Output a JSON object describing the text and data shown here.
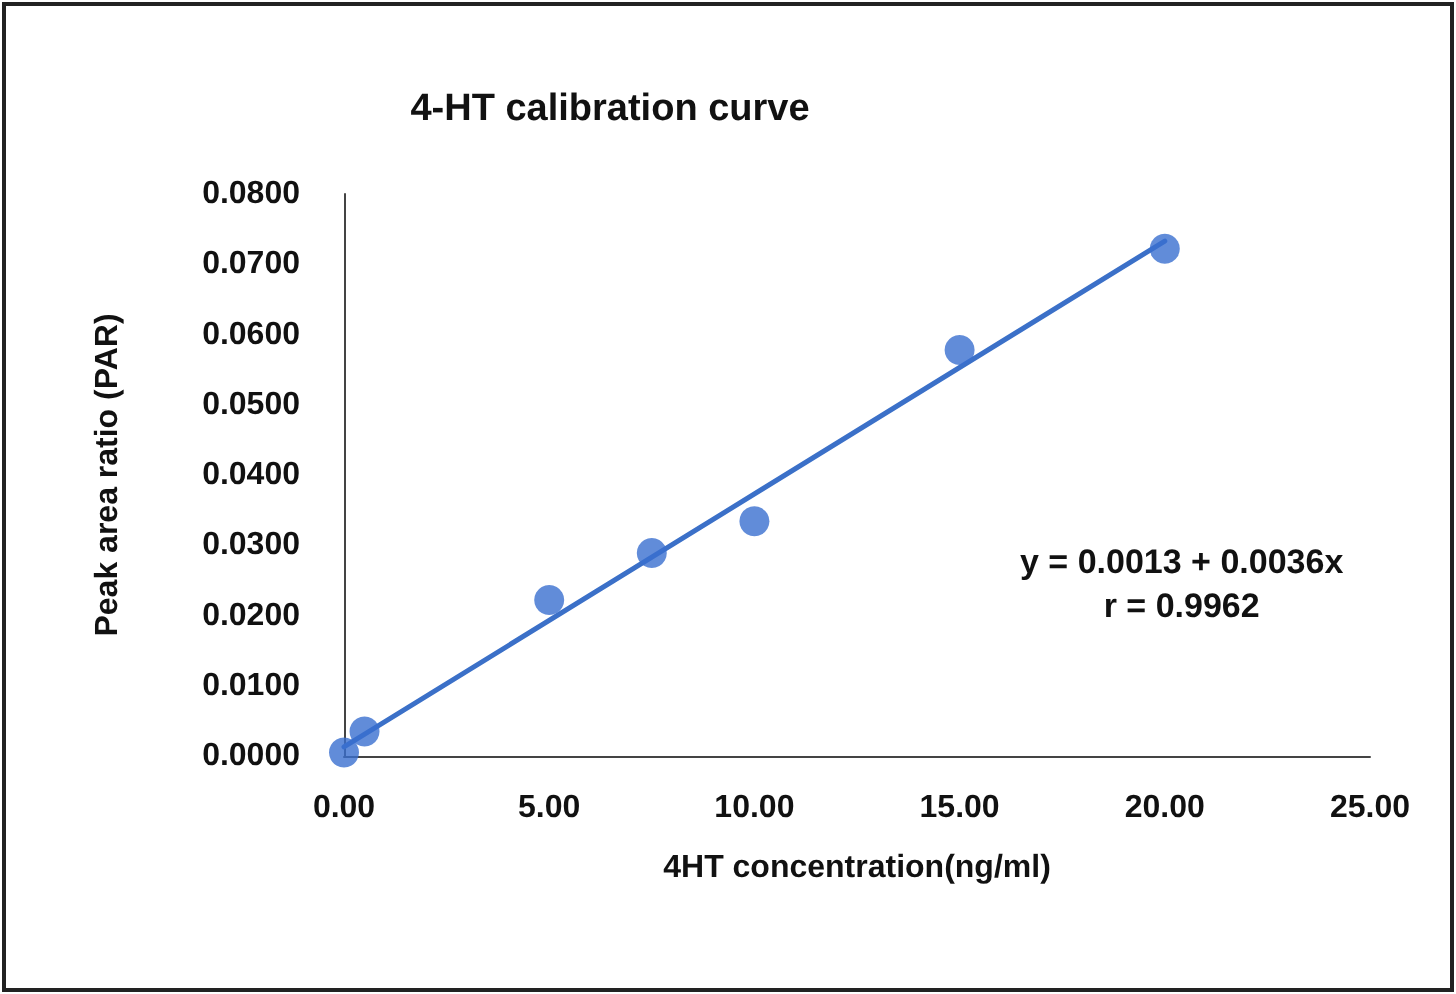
{
  "chart_data": {
    "type": "scatter",
    "title": "4-HT calibration curve",
    "xlabel": "4HT concentration(ng/ml)",
    "ylabel": "Peak area ratio (PAR)",
    "annotations": [
      "y = 0.0013 + 0.0036x\nr = 0.9962"
    ],
    "series": [
      {
        "color": "#3a6fd0",
        "marker": "circle",
        "x": [
          0,
          0.5,
          5,
          7.5,
          10,
          15,
          20
        ],
        "values": [
          0.0005,
          0.0035,
          0.0222,
          0.0289,
          0.0334,
          0.0578,
          0.0722
        ]
      },
      {
        "type": "line",
        "color": "#3b70c8",
        "marker": "none",
        "line_style": "solid",
        "x": [
          0,
          20
        ],
        "values": [
          0.0013,
          0.0733
        ]
      }
    ],
    "xlim": [
      0,
      25
    ],
    "xticks": [
      {
        "value": 0,
        "label": "0.00"
      },
      {
        "value": 5,
        "label": "5.00"
      },
      {
        "value": 10,
        "label": "10.00"
      },
      {
        "value": 15,
        "label": "15.00"
      },
      {
        "value": 20,
        "label": "20.00"
      },
      {
        "value": 25,
        "label": "25.00"
      }
    ],
    "ylim": [
      0,
      0.08
    ],
    "yticks": [
      {
        "value": 0,
        "label": "0.0000"
      },
      {
        "value": 0.01,
        "label": "0.0100"
      },
      {
        "value": 0.02,
        "label": "0.0200"
      },
      {
        "value": 0.03,
        "label": "0.0300"
      },
      {
        "value": 0.04,
        "label": "0.0400"
      },
      {
        "value": 0.05,
        "label": "0.0500"
      },
      {
        "value": 0.06,
        "label": "0.0600"
      },
      {
        "value": 0.07,
        "label": "0.0700"
      },
      {
        "value": 0.08,
        "label": "0.0800"
      }
    ],
    "grid": false
  }
}
